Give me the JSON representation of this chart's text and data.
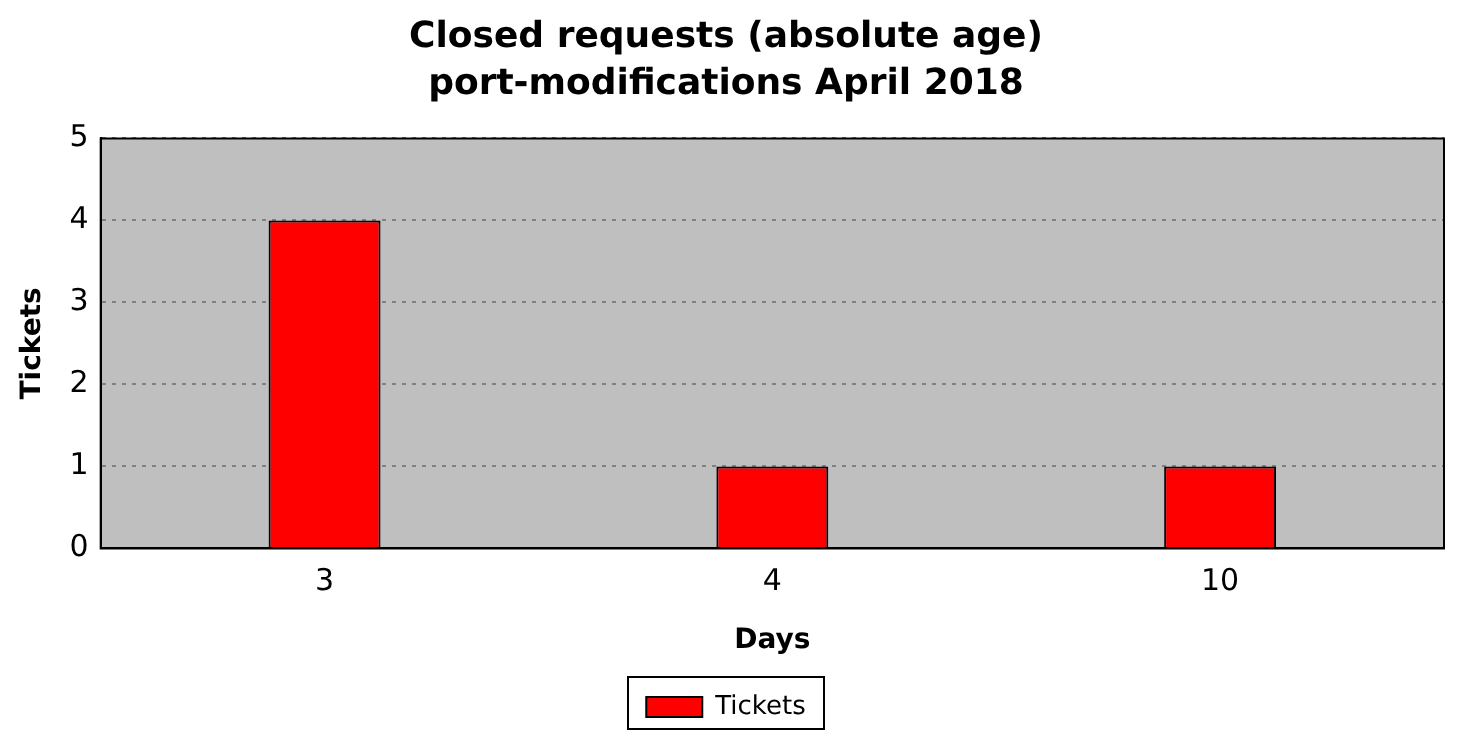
{
  "chart_data": {
    "type": "bar",
    "title": "Closed requests (absolute age)",
    "subtitle": "port-modifications April 2018",
    "xlabel": "Days",
    "ylabel": "Tickets",
    "categories": [
      "3",
      "4",
      "10"
    ],
    "series": [
      {
        "name": "Tickets",
        "color": "#ff0000",
        "values": [
          4,
          1,
          1
        ]
      }
    ],
    "ylim": [
      0,
      5
    ],
    "yticks": [
      0,
      1,
      2,
      3,
      4,
      5
    ],
    "grid": "y",
    "legend": "bottom"
  }
}
